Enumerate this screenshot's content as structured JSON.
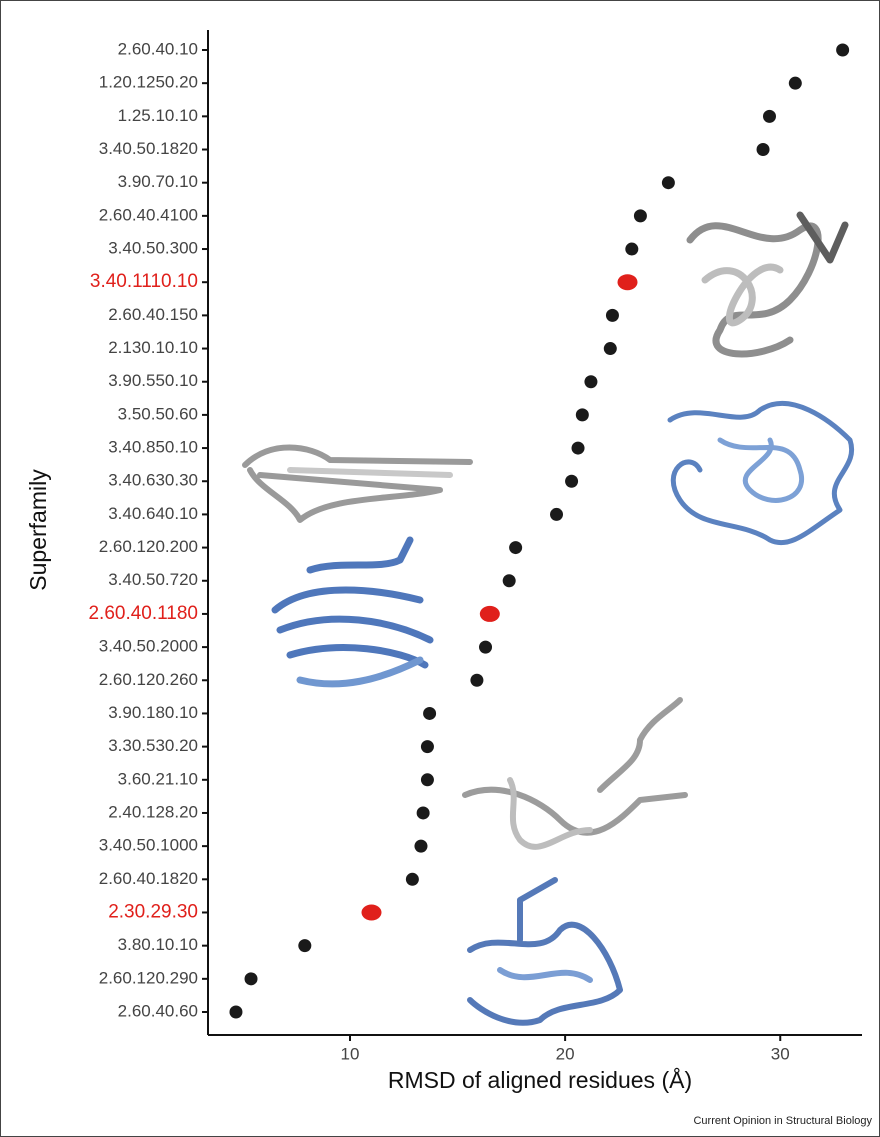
{
  "chart_data": {
    "type": "dot",
    "x_label": "RMSD of aligned residues (Å)",
    "y_label": "Superfamily",
    "source": "Current Opinion in Structural Biology",
    "categories": [
      "2.60.40.10",
      "1.20.1250.20",
      "1.25.10.10",
      "3.40.50.1820",
      "3.90.70.10",
      "2.60.40.4100",
      "3.40.50.300",
      "3.40.1110.10",
      "2.60.40.150",
      "2.130.10.10",
      "3.90.550.10",
      "3.50.50.60",
      "3.40.850.10",
      "3.40.630.30",
      "3.40.640.10",
      "2.60.120.200",
      "3.40.50.720",
      "2.60.40.1180",
      "3.40.50.2000",
      "2.60.120.260",
      "3.90.180.10",
      "3.30.530.20",
      "3.60.21.10",
      "2.40.128.20",
      "3.40.50.1000",
      "2.60.40.1820",
      "2.30.29.30",
      "3.80.10.10",
      "2.60.120.290",
      "2.60.40.60"
    ],
    "values": [
      32.9,
      30.7,
      29.5,
      29.2,
      24.8,
      23.5,
      23.1,
      22.9,
      22.2,
      22.1,
      21.2,
      20.8,
      20.6,
      20.3,
      19.6,
      17.7,
      17.4,
      16.5,
      16.3,
      15.9,
      13.7,
      13.6,
      13.6,
      13.4,
      13.3,
      12.9,
      11.0,
      7.9,
      5.4,
      4.7
    ],
    "point_colors": [
      "#1a1a1a",
      "#1a1a1a",
      "#1a1a1a",
      "#1a1a1a",
      "#1a1a1a",
      "#1a1a1a",
      "#1a1a1a",
      "#e0201b",
      "#1a1a1a",
      "#1a1a1a",
      "#1a1a1a",
      "#1a1a1a",
      "#1a1a1a",
      "#1a1a1a",
      "#1a1a1a",
      "#1a1a1a",
      "#1a1a1a",
      "#e0201b",
      "#1a1a1a",
      "#1a1a1a",
      "#1a1a1a",
      "#1a1a1a",
      "#1a1a1a",
      "#1a1a1a",
      "#1a1a1a",
      "#1a1a1a",
      "#e0201b",
      "#1a1a1a",
      "#1a1a1a",
      "#1a1a1a"
    ],
    "xlim": [
      3.4,
      33.8
    ],
    "xticks": [
      10,
      20,
      30
    ]
  }
}
